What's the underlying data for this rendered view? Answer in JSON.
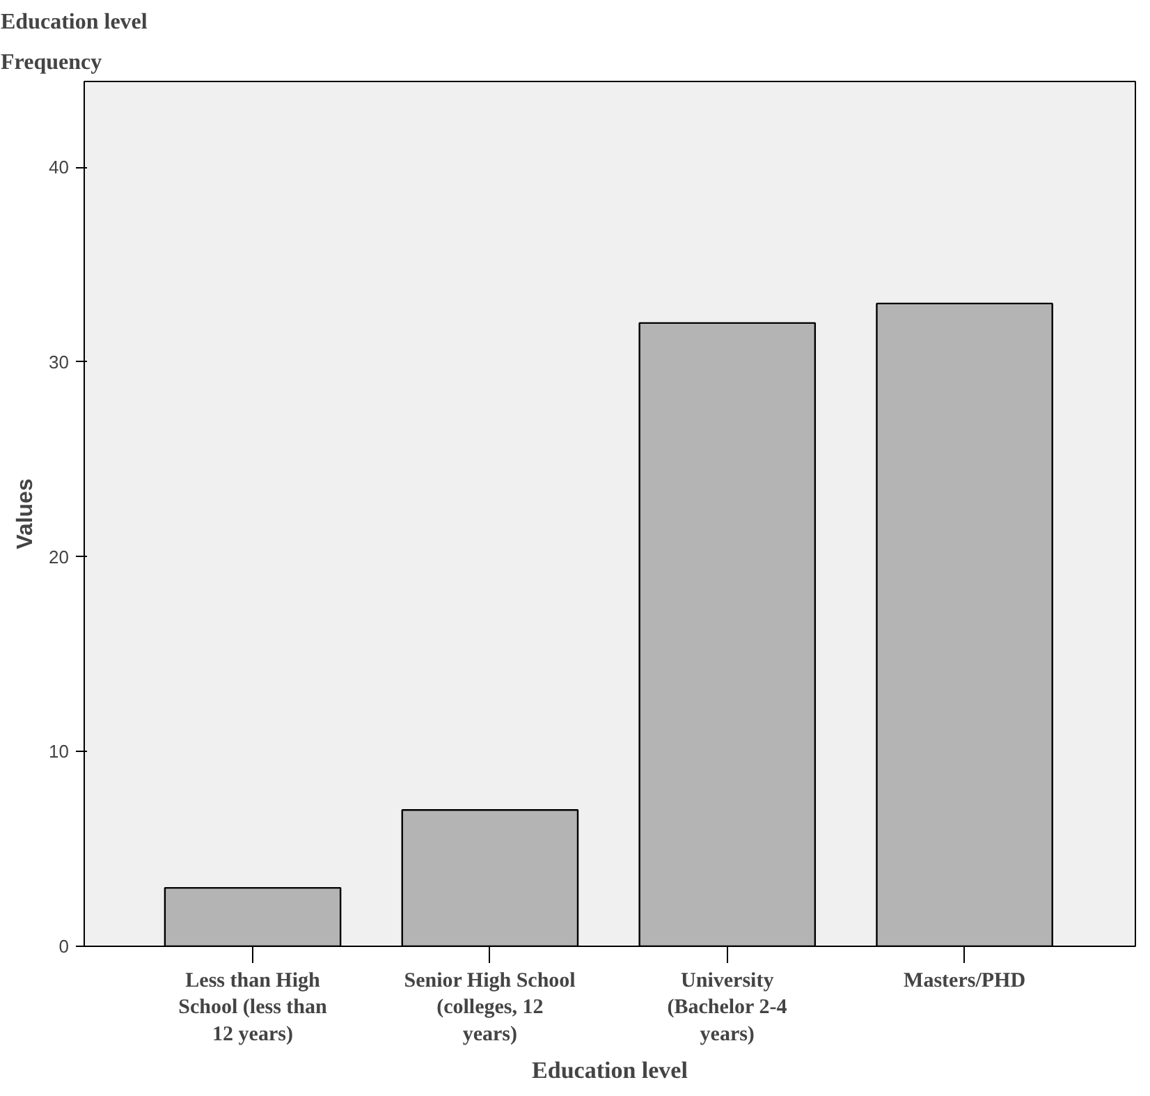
{
  "chart_data": {
    "type": "bar",
    "title": "Education level",
    "subtitle": "Frequency",
    "xlabel": "Education level",
    "ylabel": "Values",
    "categories": [
      "Less than High School (less than 12 years)",
      "Senior High School (colleges, 12 years)",
      "University (Bachelor 2-4 years)",
      "Masters/PHD"
    ],
    "values": [
      3,
      7,
      32,
      33
    ],
    "color": "#b4b4b4",
    "ylim": [
      0,
      44.4
    ],
    "yticks": [
      0,
      10,
      20,
      30,
      40
    ],
    "grid": false
  }
}
